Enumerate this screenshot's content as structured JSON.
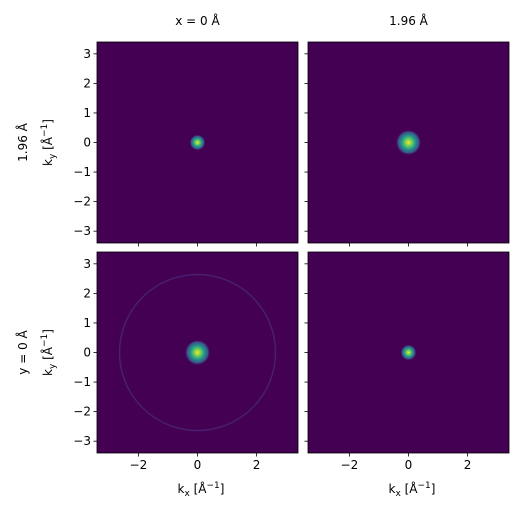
{
  "chart_data": {
    "type": "image",
    "column_titles": [
      "x = 0 Å",
      "1.96 Å"
    ],
    "row_titles": [
      "1.96 Å",
      "y = 0 Å"
    ],
    "xlabel": [
      "k",
      "x",
      " [Å",
      "−1",
      "]"
    ],
    "ylabel": [
      "k",
      "y",
      " [Å",
      "−1",
      "]"
    ],
    "xlim": [
      -3.4,
      3.4
    ],
    "ylim": [
      -3.4,
      3.4
    ],
    "xticks": [
      {
        "value": -2,
        "label": "−2"
      },
      0,
      2
    ],
    "yticks": [
      {
        "value": -3,
        "label": "−3"
      },
      {
        "value": -2,
        "label": "−2"
      },
      {
        "value": -1,
        "label": "−1"
      },
      0,
      1,
      2,
      3
    ],
    "background_color": "#440154"
  }
}
